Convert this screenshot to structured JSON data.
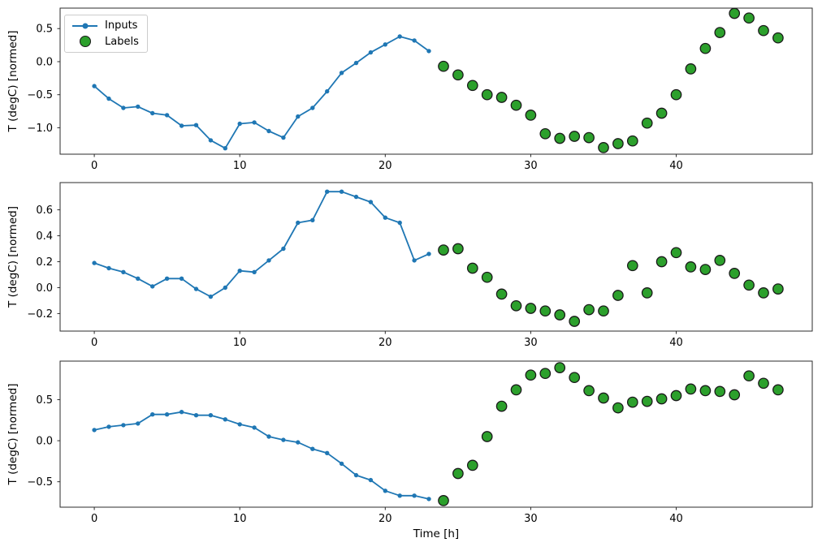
{
  "figure": {
    "xlabel": "Time [h]",
    "colors": {
      "inputs_line": "#1f77b4",
      "labels_fill": "#2ca02c",
      "labels_edge": "#1a1a1a",
      "spine": "#2b2b2b",
      "tick_text": "#000000",
      "legend_border": "#cccccc"
    },
    "legend": {
      "position": "upper-left",
      "items": [
        {
          "label": "Inputs",
          "marker": "line-with-dot"
        },
        {
          "label": "Labels",
          "marker": "filled-circle"
        }
      ]
    }
  },
  "chart_data": [
    {
      "type": "line",
      "subplot": 1,
      "ylabel": "T (degC) [normed]",
      "xlim": [
        -2.35,
        49.35
      ],
      "ylim": [
        -1.4,
        0.81
      ],
      "xtick_values": [
        0,
        10,
        20,
        30,
        40
      ],
      "xtick_labels": [
        "0",
        "10",
        "20",
        "30",
        "40"
      ],
      "ytick_values": [
        0.5,
        0.0,
        -0.5,
        -1.0
      ],
      "ytick_labels": [
        "0.5",
        "0.0",
        "−0.5",
        "−1.0"
      ],
      "grid": false,
      "series": [
        {
          "name": "Inputs",
          "type": "line",
          "marker": "dot",
          "color": "#1f77b4",
          "x": [
            0,
            1,
            2,
            3,
            4,
            5,
            6,
            7,
            8,
            9,
            10,
            11,
            12,
            13,
            14,
            15,
            16,
            17,
            18,
            19,
            20,
            21,
            22,
            23
          ],
          "y": [
            -0.37,
            -0.56,
            -0.7,
            -0.68,
            -0.78,
            -0.81,
            -0.97,
            -0.96,
            -1.19,
            -1.31,
            -0.94,
            -0.92,
            -1.05,
            -1.15,
            -0.83,
            -0.7,
            -0.45,
            -0.17,
            -0.02,
            0.14,
            0.26,
            0.38,
            0.32,
            0.16
          ]
        },
        {
          "name": "Labels",
          "type": "scatter",
          "marker": "circle",
          "color": "#2ca02c",
          "edge": "#1a1a1a",
          "x": [
            24,
            25,
            26,
            27,
            28,
            29,
            30,
            31,
            32,
            33,
            34,
            35,
            36,
            37,
            38,
            39,
            40,
            41,
            42,
            43,
            44,
            45,
            46,
            47
          ],
          "y": [
            -0.07,
            -0.2,
            -0.36,
            -0.5,
            -0.54,
            -0.66,
            -0.81,
            -1.09,
            -1.16,
            -1.13,
            -1.15,
            -1.3,
            -1.24,
            -1.2,
            -0.93,
            -0.78,
            -0.5,
            -0.11,
            0.2,
            0.44,
            0.73,
            0.66,
            0.47,
            0.36
          ]
        }
      ]
    },
    {
      "type": "line",
      "subplot": 2,
      "ylabel": "T (degC) [normed]",
      "xlim": [
        -2.35,
        49.35
      ],
      "ylim": [
        -0.335,
        0.81
      ],
      "xtick_values": [
        0,
        10,
        20,
        30,
        40
      ],
      "xtick_labels": [
        "0",
        "10",
        "20",
        "30",
        "40"
      ],
      "ytick_values": [
        0.6,
        0.4,
        0.2,
        0.0,
        -0.2
      ],
      "ytick_labels": [
        "0.6",
        "0.4",
        "0.2",
        "0.0",
        "−0.2"
      ],
      "grid": false,
      "series": [
        {
          "name": "Inputs",
          "type": "line",
          "marker": "dot",
          "color": "#1f77b4",
          "x": [
            0,
            1,
            2,
            3,
            4,
            5,
            6,
            7,
            8,
            9,
            10,
            11,
            12,
            13,
            14,
            15,
            16,
            17,
            18,
            19,
            20,
            21,
            22,
            23
          ],
          "y": [
            0.19,
            0.15,
            0.12,
            0.07,
            0.01,
            0.07,
            0.07,
            -0.01,
            -0.07,
            0.0,
            0.13,
            0.12,
            0.21,
            0.3,
            0.5,
            0.52,
            0.74,
            0.74,
            0.7,
            0.66,
            0.54,
            0.5,
            0.21,
            0.26
          ]
        },
        {
          "name": "Labels",
          "type": "scatter",
          "marker": "circle",
          "color": "#2ca02c",
          "edge": "#1a1a1a",
          "x": [
            24,
            25,
            26,
            27,
            28,
            29,
            30,
            31,
            32,
            33,
            34,
            35,
            36,
            37,
            38,
            39,
            40,
            41,
            42,
            43,
            44,
            45,
            46,
            47
          ],
          "y": [
            0.29,
            0.3,
            0.15,
            0.08,
            -0.05,
            -0.14,
            -0.16,
            -0.18,
            -0.21,
            -0.26,
            -0.17,
            -0.18,
            -0.06,
            0.17,
            -0.04,
            0.2,
            0.27,
            0.16,
            0.14,
            0.21,
            0.11,
            0.02,
            -0.04,
            -0.01
          ]
        }
      ]
    },
    {
      "type": "line",
      "subplot": 3,
      "ylabel": "T (degC) [normed]",
      "xlim": [
        -2.35,
        49.35
      ],
      "ylim": [
        -0.81,
        0.97
      ],
      "xtick_values": [
        0,
        10,
        20,
        30,
        40
      ],
      "xtick_labels": [
        "0",
        "10",
        "20",
        "30",
        "40"
      ],
      "ytick_values": [
        0.5,
        0.0,
        -0.5
      ],
      "ytick_labels": [
        "0.5",
        "0.0",
        "−0.5"
      ],
      "grid": false,
      "series": [
        {
          "name": "Inputs",
          "type": "line",
          "marker": "dot",
          "color": "#1f77b4",
          "x": [
            0,
            1,
            2,
            3,
            4,
            5,
            6,
            7,
            8,
            9,
            10,
            11,
            12,
            13,
            14,
            15,
            16,
            17,
            18,
            19,
            20,
            21,
            22,
            23
          ],
          "y": [
            0.13,
            0.17,
            0.19,
            0.21,
            0.32,
            0.32,
            0.35,
            0.31,
            0.31,
            0.26,
            0.2,
            0.16,
            0.05,
            0.01,
            -0.02,
            -0.1,
            -0.15,
            -0.28,
            -0.42,
            -0.48,
            -0.61,
            -0.67,
            -0.67,
            -0.71
          ]
        },
        {
          "name": "Labels",
          "type": "scatter",
          "marker": "circle",
          "color": "#2ca02c",
          "edge": "#1a1a1a",
          "x": [
            24,
            25,
            26,
            27,
            28,
            29,
            30,
            31,
            32,
            33,
            34,
            35,
            36,
            37,
            38,
            39,
            40,
            41,
            42,
            43,
            44,
            45,
            46,
            47
          ],
          "y": [
            -0.73,
            -0.4,
            -0.3,
            0.05,
            0.42,
            0.62,
            0.8,
            0.82,
            0.89,
            0.77,
            0.61,
            0.52,
            0.4,
            0.47,
            0.48,
            0.51,
            0.55,
            0.63,
            0.61,
            0.6,
            0.56,
            0.79,
            0.7,
            0.62
          ]
        }
      ]
    }
  ]
}
